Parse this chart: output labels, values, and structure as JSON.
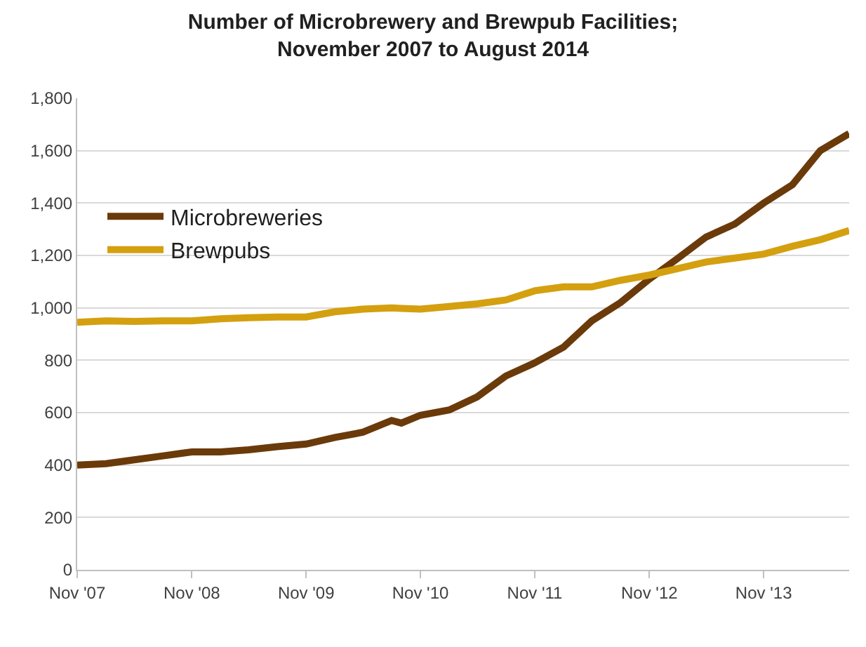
{
  "chart_data": {
    "type": "line",
    "title": "Number of Microbrewery and Brewpub Facilities;\nNovember 2007 to August 2014",
    "x": [
      "2007-11",
      "2008-02",
      "2008-05",
      "2008-08",
      "2008-11",
      "2009-02",
      "2009-05",
      "2009-08",
      "2009-11",
      "2010-02",
      "2010-05",
      "2010-08",
      "2010-09",
      "2010-11",
      "2011-02",
      "2011-05",
      "2011-08",
      "2011-11",
      "2012-02",
      "2012-05",
      "2012-08",
      "2012-11",
      "2013-02",
      "2013-05",
      "2013-08",
      "2013-11",
      "2014-02",
      "2014-05",
      "2014-08"
    ],
    "series": [
      {
        "name": "Microbreweries",
        "color": "#6b3a0a",
        "values": [
          400,
          405,
          420,
          435,
          450,
          450,
          458,
          470,
          480,
          505,
          525,
          570,
          560,
          590,
          610,
          660,
          740,
          790,
          850,
          950,
          1020,
          1110,
          1190,
          1270,
          1320,
          1400,
          1470,
          1600,
          1665
        ]
      },
      {
        "name": "Brewpubs",
        "color": "#d4a010",
        "values": [
          945,
          950,
          948,
          950,
          950,
          958,
          962,
          965,
          965,
          985,
          995,
          1000,
          998,
          995,
          1005,
          1015,
          1030,
          1065,
          1080,
          1080,
          1105,
          1125,
          1150,
          1175,
          1190,
          1205,
          1235,
          1260,
          1295
        ]
      }
    ],
    "xlim": [
      "2007-11",
      "2014-08"
    ],
    "xticks": [
      {
        "value": "2007-11",
        "label": "Nov '07"
      },
      {
        "value": "2008-11",
        "label": "Nov '08"
      },
      {
        "value": "2009-11",
        "label": "Nov '09"
      },
      {
        "value": "2010-11",
        "label": "Nov '10"
      },
      {
        "value": "2011-11",
        "label": "Nov '11"
      },
      {
        "value": "2012-11",
        "label": "Nov '12"
      },
      {
        "value": "2013-11",
        "label": "Nov '13"
      }
    ],
    "ylim": [
      0,
      1800
    ],
    "yticks": [
      {
        "value": 0,
        "label": "0"
      },
      {
        "value": 200,
        "label": "200"
      },
      {
        "value": 400,
        "label": "400"
      },
      {
        "value": 600,
        "label": "600"
      },
      {
        "value": 800,
        "label": "800"
      },
      {
        "value": 1000,
        "label": "1,000"
      },
      {
        "value": 1200,
        "label": "1,200"
      },
      {
        "value": 1400,
        "label": "1,400"
      },
      {
        "value": 1600,
        "label": "1,600"
      },
      {
        "value": 1800,
        "label": "1,800"
      }
    ],
    "grid": "y",
    "legend": "top left",
    "marker": "none",
    "line_style": "solid"
  }
}
